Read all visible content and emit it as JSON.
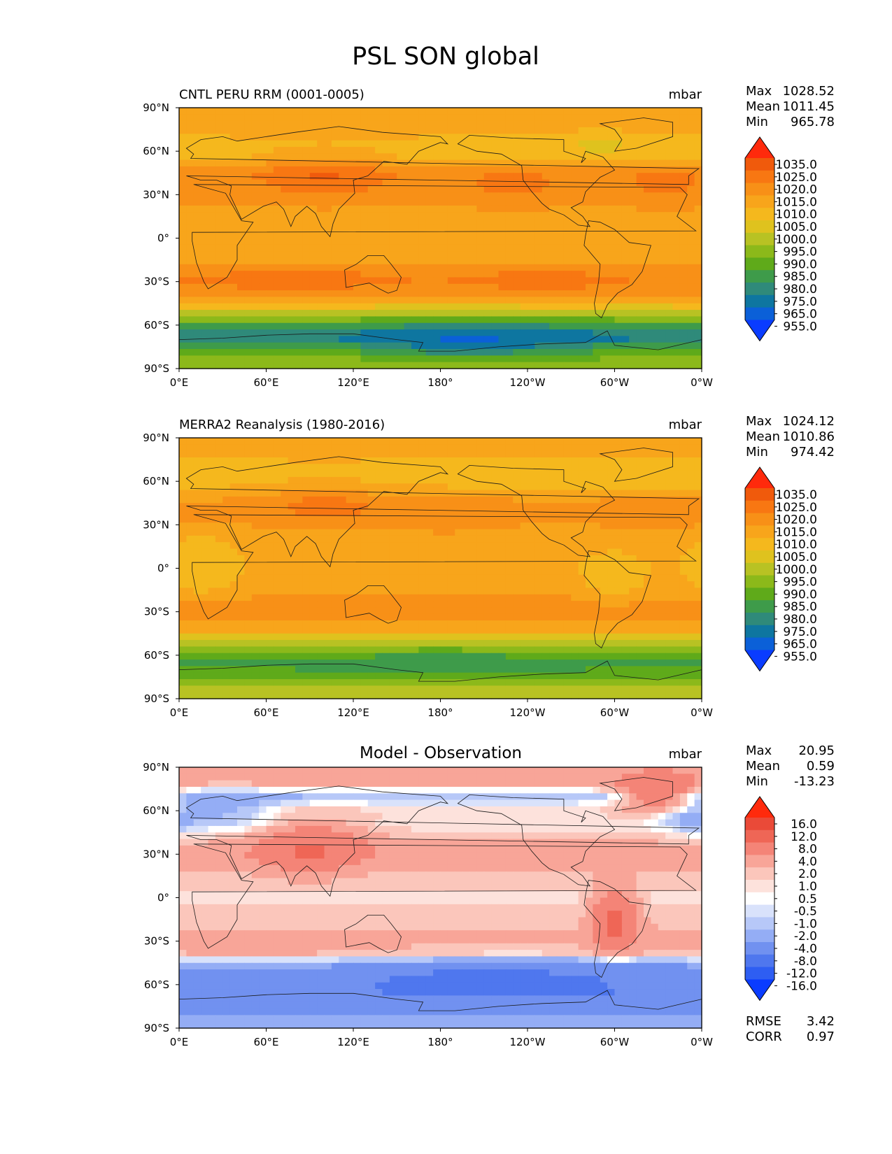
{
  "figure": {
    "title": "PSL SON global"
  },
  "axes": {
    "lat_ticks": [
      "90°N",
      "60°N",
      "30°N",
      "0°",
      "30°S",
      "60°S",
      "90°S"
    ],
    "lon_ticks": [
      "0°E",
      "60°E",
      "120°E",
      "180°",
      "120°W",
      "60°W",
      "0°W"
    ]
  },
  "colors": {
    "abs_palette": [
      "#0a3cff",
      "#0b60d8",
      "#0e76a0",
      "#2f8a7a",
      "#3e9b4a",
      "#5faa1a",
      "#8cb91a",
      "#b8c223",
      "#dfc21e",
      "#f5b81d",
      "#f8a51b",
      "#f89017",
      "#f87712",
      "#f05a0c",
      "#ff2a0c"
    ],
    "diff_palette": [
      "#0a3cff",
      "#2e5ef2",
      "#4f77ee",
      "#7191f0",
      "#94adf5",
      "#b7c8f8",
      "#d9e2fb",
      "#ffffff",
      "#fde2dc",
      "#fbc6bb",
      "#f8a598",
      "#f48477",
      "#ef6656",
      "#ea4a38",
      "#ff2a0c"
    ]
  },
  "chart_data": [
    {
      "type": "contour-map",
      "title": "CNTL PERU RRM (0001-0005)",
      "units": "mbar",
      "stats": [
        {
          "label": "Max",
          "value": "1028.52"
        },
        {
          "label": "Mean",
          "value": "1011.45"
        },
        {
          "label": "Min",
          "value": "965.78"
        }
      ],
      "colorbar_levels": [
        "1035.0",
        "1025.0",
        "1020.0",
        "1015.0",
        "1010.0",
        "1005.0",
        "1000.0",
        "995.0",
        "990.0",
        "985.0",
        "980.0",
        "975.0",
        "965.0",
        "955.0"
      ],
      "lat_profile_mbar": [
        [
          90,
          1012
        ],
        [
          75,
          1012
        ],
        [
          65,
          1008
        ],
        [
          55,
          1009
        ],
        [
          45,
          1018
        ],
        [
          35,
          1017
        ],
        [
          20,
          1014
        ],
        [
          0,
          1012
        ],
        [
          -15,
          1014
        ],
        [
          -28,
          1020
        ],
        [
          -40,
          1015
        ],
        [
          -48,
          1004
        ],
        [
          -55,
          993
        ],
        [
          -62,
          983
        ],
        [
          -68,
          975
        ],
        [
          -75,
          985
        ],
        [
          -85,
          993
        ],
        [
          -90,
          995
        ]
      ]
    },
    {
      "type": "contour-map",
      "title": "MERRA2 Reanalysis (1980-2016)",
      "units": "mbar",
      "stats": [
        {
          "label": "Max",
          "value": "1024.12"
        },
        {
          "label": "Mean",
          "value": "1010.86"
        },
        {
          "label": "Min",
          "value": "974.42"
        }
      ],
      "colorbar_levels": [
        "1035.0",
        "1025.0",
        "1020.0",
        "1015.0",
        "1010.0",
        "1005.0",
        "1000.0",
        "995.0",
        "990.0",
        "985.0",
        "980.0",
        "975.0",
        "965.0",
        "955.0"
      ],
      "lat_profile_mbar": [
        [
          90,
          1011
        ],
        [
          75,
          1010
        ],
        [
          65,
          1007
        ],
        [
          55,
          1010
        ],
        [
          45,
          1016
        ],
        [
          35,
          1016
        ],
        [
          20,
          1012
        ],
        [
          0,
          1011
        ],
        [
          -15,
          1013
        ],
        [
          -28,
          1019
        ],
        [
          -40,
          1014
        ],
        [
          -48,
          1004
        ],
        [
          -55,
          994
        ],
        [
          -62,
          986
        ],
        [
          -68,
          984
        ],
        [
          -75,
          990
        ],
        [
          -85,
          998
        ],
        [
          -90,
          1000
        ]
      ]
    },
    {
      "type": "contour-map",
      "title": "Model - Observation",
      "units": "mbar",
      "stats": [
        {
          "label": "Max",
          "value": "20.95"
        },
        {
          "label": "Mean",
          "value": "0.59"
        },
        {
          "label": "Min",
          "value": "-13.23"
        }
      ],
      "colorbar_levels": [
        "16.0",
        "12.0",
        "8.0",
        "4.0",
        "2.0",
        "1.0",
        "0.5",
        "-0.5",
        "-1.0",
        "-2.0",
        "-4.0",
        "-8.0",
        "-12.0",
        "-16.0"
      ],
      "extra_stats": [
        {
          "label": "RMSE",
          "value": "3.42"
        },
        {
          "label": "CORR",
          "value": "0.97"
        }
      ],
      "lat_profile_mbar": [
        [
          90,
          3
        ],
        [
          80,
          3
        ],
        [
          70,
          -2
        ],
        [
          60,
          1
        ],
        [
          50,
          0.5
        ],
        [
          40,
          2
        ],
        [
          30,
          3
        ],
        [
          15,
          1.5
        ],
        [
          0,
          0.7
        ],
        [
          -15,
          1.5
        ],
        [
          -30,
          2.5
        ],
        [
          -40,
          2
        ],
        [
          -45,
          -3
        ],
        [
          -55,
          -6
        ],
        [
          -65,
          -7
        ],
        [
          -75,
          -5
        ],
        [
          -85,
          -3
        ],
        [
          -90,
          -2
        ]
      ]
    }
  ]
}
